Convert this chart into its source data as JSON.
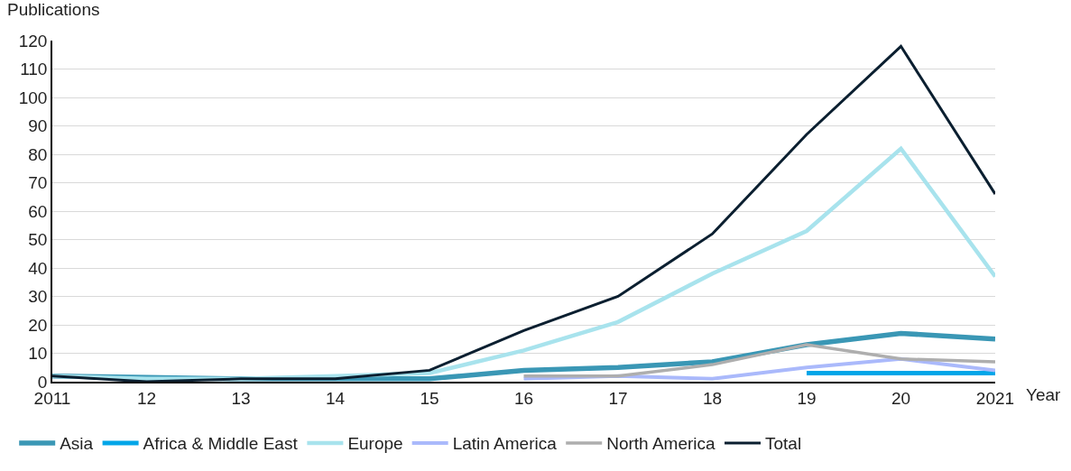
{
  "chart_data": {
    "type": "line",
    "ylabel": "Publications",
    "xlabel": "Year",
    "categories": [
      "2011",
      "12",
      "13",
      "14",
      "15",
      "16",
      "17",
      "18",
      "19",
      "20",
      "2021"
    ],
    "series": [
      {
        "name": "Asia",
        "color": "#3a97b5",
        "values": [
          2,
          1.5,
          1,
          1,
          1,
          4,
          5,
          7,
          13,
          17,
          15
        ]
      },
      {
        "name": "Africa & Middle East",
        "color": "#00a6e8",
        "values": [
          null,
          null,
          null,
          null,
          null,
          null,
          null,
          null,
          3,
          3,
          3
        ]
      },
      {
        "name": "Europe",
        "color": "#a8e3ed",
        "values": [
          2,
          1,
          1,
          2,
          3,
          11,
          21,
          38,
          53,
          82,
          37
        ]
      },
      {
        "name": "Latin America",
        "color": "#aab9fb",
        "values": [
          null,
          null,
          null,
          null,
          null,
          1,
          2,
          1,
          5,
          8,
          4
        ]
      },
      {
        "name": "North America",
        "color": "#aeaeae",
        "values": [
          null,
          null,
          null,
          null,
          null,
          2,
          2,
          6,
          13,
          8,
          7
        ]
      },
      {
        "name": "Total",
        "color": "#0b1f30",
        "values": [
          2,
          0,
          1,
          1,
          4,
          18,
          30,
          52,
          87,
          118,
          66
        ]
      }
    ],
    "ylim": [
      0,
      120
    ],
    "yticks": [
      0,
      10,
      20,
      30,
      40,
      50,
      60,
      70,
      80,
      90,
      100,
      110,
      120
    ],
    "grid": "y",
    "legend": "bottom",
    "marker": "none",
    "line_style": "solid"
  }
}
